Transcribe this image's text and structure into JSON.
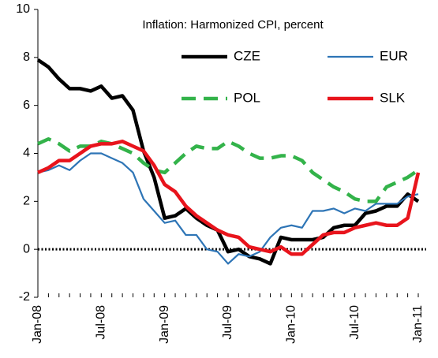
{
  "chart_data": {
    "type": "line",
    "title": "Inflation: Harmonized CPI, percent",
    "categories": [
      "Jan-08",
      null,
      null,
      null,
      null,
      null,
      "Jul-08",
      null,
      null,
      null,
      null,
      null,
      "Jan-09",
      null,
      null,
      null,
      null,
      null,
      "Jul-09",
      null,
      null,
      null,
      null,
      null,
      "Jan-10",
      null,
      null,
      null,
      null,
      null,
      "Jul-10",
      null,
      null,
      null,
      null,
      null,
      "Jan-11"
    ],
    "series": [
      {
        "name": "CZE",
        "color": "#000000",
        "style": "solid",
        "values": [
          7.9,
          7.6,
          7.1,
          6.7,
          6.7,
          6.6,
          6.8,
          6.3,
          6.4,
          5.8,
          4.1,
          3.0,
          1.3,
          1.4,
          1.7,
          1.3,
          1.0,
          0.8,
          -0.1,
          0.0,
          -0.3,
          -0.4,
          -0.6,
          0.5,
          0.4,
          0.4,
          0.4,
          0.5,
          0.9,
          1.0,
          1.0,
          1.5,
          1.6,
          1.8,
          1.8,
          2.3,
          2.0
        ]
      },
      {
        "name": "EUR",
        "color": "#2e75b6",
        "style": "thin",
        "values": [
          3.2,
          3.3,
          3.5,
          3.3,
          3.7,
          4.0,
          4.0,
          3.8,
          3.6,
          3.2,
          2.1,
          1.6,
          1.1,
          1.2,
          0.6,
          0.6,
          0.0,
          -0.1,
          -0.6,
          -0.2,
          -0.3,
          -0.1,
          0.5,
          0.9,
          1.0,
          0.9,
          1.6,
          1.6,
          1.7,
          1.5,
          1.7,
          1.6,
          1.9,
          1.9,
          1.9,
          2.2,
          2.3
        ]
      },
      {
        "name": "POL",
        "color": "#33b34a",
        "style": "dashed",
        "values": [
          4.4,
          4.6,
          4.4,
          4.1,
          4.3,
          4.3,
          4.5,
          4.4,
          4.2,
          4.0,
          3.6,
          3.3,
          3.2,
          3.6,
          4.0,
          4.3,
          4.2,
          4.2,
          4.5,
          4.3,
          4.0,
          3.8,
          3.8,
          3.9,
          3.9,
          3.7,
          3.2,
          2.9,
          2.6,
          2.4,
          2.1,
          2.0,
          2.0,
          2.6,
          2.8,
          3.0,
          3.3
        ]
      },
      {
        "name": "SLK",
        "color": "#e8141c",
        "style": "solid",
        "values": [
          3.2,
          3.4,
          3.7,
          3.7,
          4.0,
          4.3,
          4.4,
          4.4,
          4.5,
          4.3,
          4.1,
          3.5,
          2.7,
          2.4,
          1.8,
          1.4,
          1.1,
          0.8,
          0.6,
          0.5,
          0.1,
          0.0,
          -0.1,
          0.1,
          -0.2,
          -0.2,
          0.2,
          0.6,
          0.7,
          0.7,
          0.9,
          1.0,
          1.1,
          1.0,
          1.0,
          1.3,
          3.2
        ]
      }
    ],
    "ylim": [
      -2,
      10
    ],
    "yticks": [
      -2,
      0,
      2,
      4,
      6,
      8,
      10
    ],
    "grid": false
  }
}
